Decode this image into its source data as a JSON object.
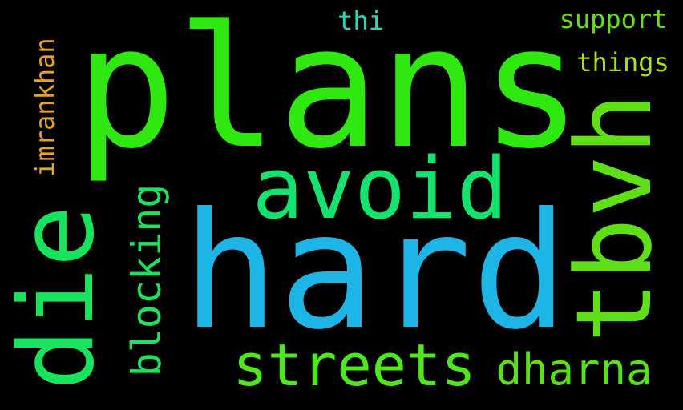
{
  "wordcloud": {
    "background": "#000000",
    "words": {
      "plans": {
        "text": "plans",
        "color": "#2ee810",
        "orientation": "horizontal"
      },
      "hard": {
        "text": "hard",
        "color": "#1db4e6",
        "orientation": "horizontal"
      },
      "avoid": {
        "text": "avoid",
        "color": "#14e46e",
        "orientation": "horizontal"
      },
      "tbvh": {
        "text": "tbvh",
        "color": "#5fe016",
        "orientation": "vertical"
      },
      "die": {
        "text": "die",
        "color": "#17e45c",
        "orientation": "vertical"
      },
      "streets": {
        "text": "streets",
        "color": "#4de81a",
        "orientation": "horizontal"
      },
      "dharna": {
        "text": "dharna",
        "color": "#58e018",
        "orientation": "horizontal"
      },
      "blocking": {
        "text": "blocking",
        "color": "#20e060",
        "orientation": "vertical"
      },
      "imrankhan": {
        "text": "imrankhan",
        "color": "#e8a22a",
        "orientation": "vertical"
      },
      "support": {
        "text": "support",
        "color": "#62e014",
        "orientation": "horizontal"
      },
      "things": {
        "text": "things",
        "color": "#a8e01c",
        "orientation": "horizontal"
      },
      "thi": {
        "text": "thi",
        "color": "#1edcc0",
        "orientation": "horizontal"
      }
    }
  }
}
